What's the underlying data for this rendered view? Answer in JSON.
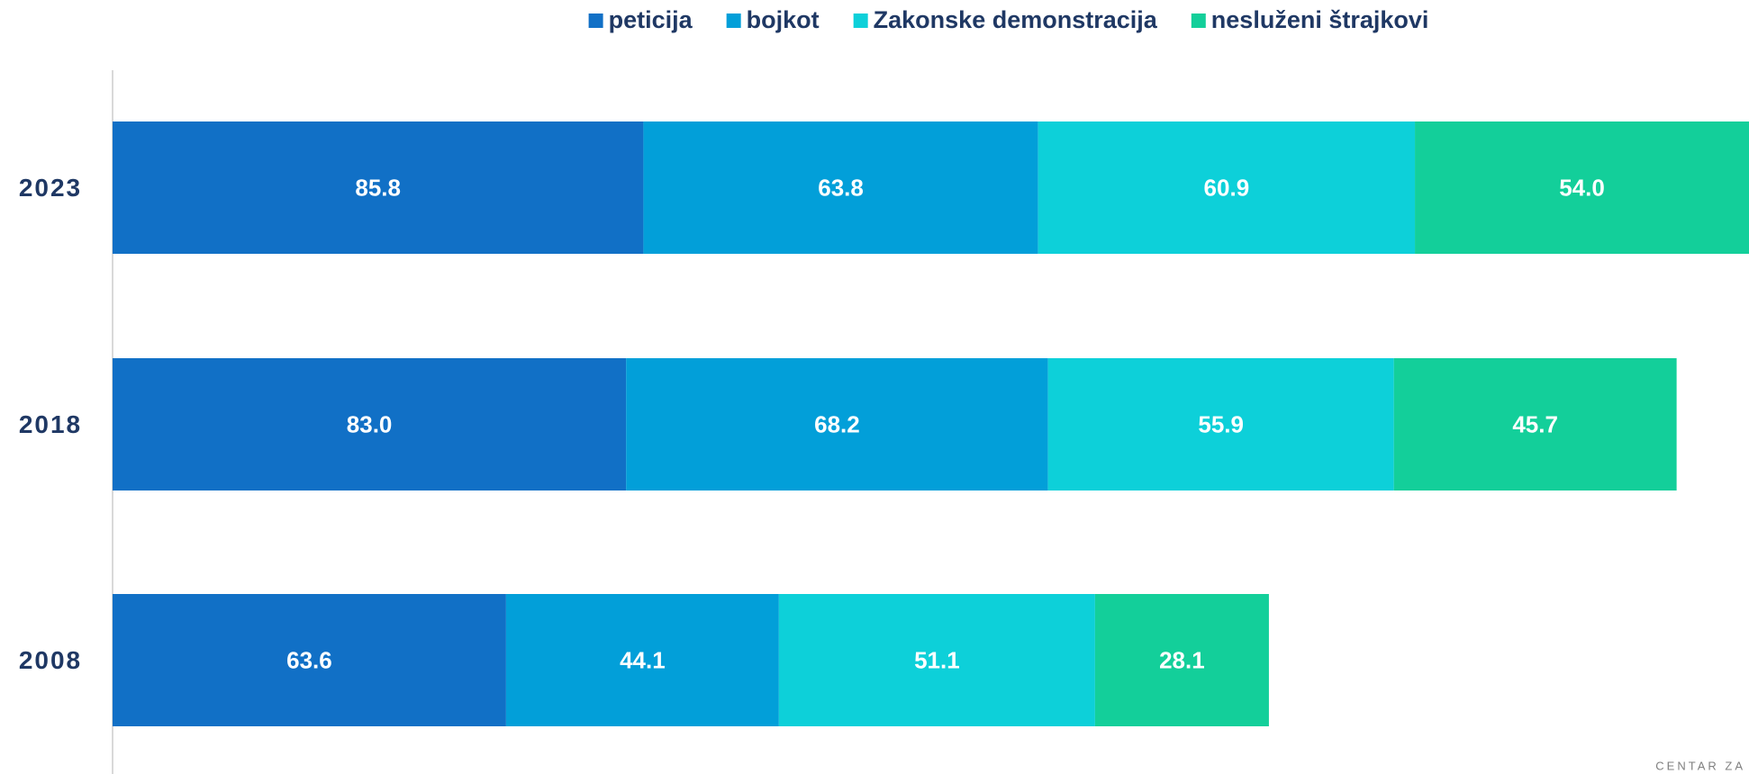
{
  "chart_data": {
    "type": "stacked-barh",
    "categories": [
      "2023",
      "2018",
      "2008"
    ],
    "series": [
      {
        "name": "peticija",
        "color": "#1170c6",
        "values": [
          85.8,
          83.0,
          63.6
        ],
        "value_labels": [
          "85.8",
          "83.0",
          "63.6"
        ]
      },
      {
        "name": "bojkot",
        "color": "#029fd9",
        "values": [
          63.8,
          68.2,
          44.1
        ],
        "value_labels": [
          "63.8",
          "68.2",
          "44.1"
        ]
      },
      {
        "name": "Zakonske demonstracija",
        "color": "#0dd0d9",
        "values": [
          60.9,
          55.9,
          51.1
        ],
        "value_labels": [
          "60.9",
          "55.9",
          "51.1"
        ]
      },
      {
        "name": "nesluženi štrajkovi",
        "color": "#13cf9a",
        "values": [
          54.0,
          45.7,
          28.1
        ],
        "value_labels": [
          "54.0",
          "45.7",
          "28.1"
        ]
      }
    ],
    "legend": "top",
    "logo_text": "CENTAR ZA"
  }
}
